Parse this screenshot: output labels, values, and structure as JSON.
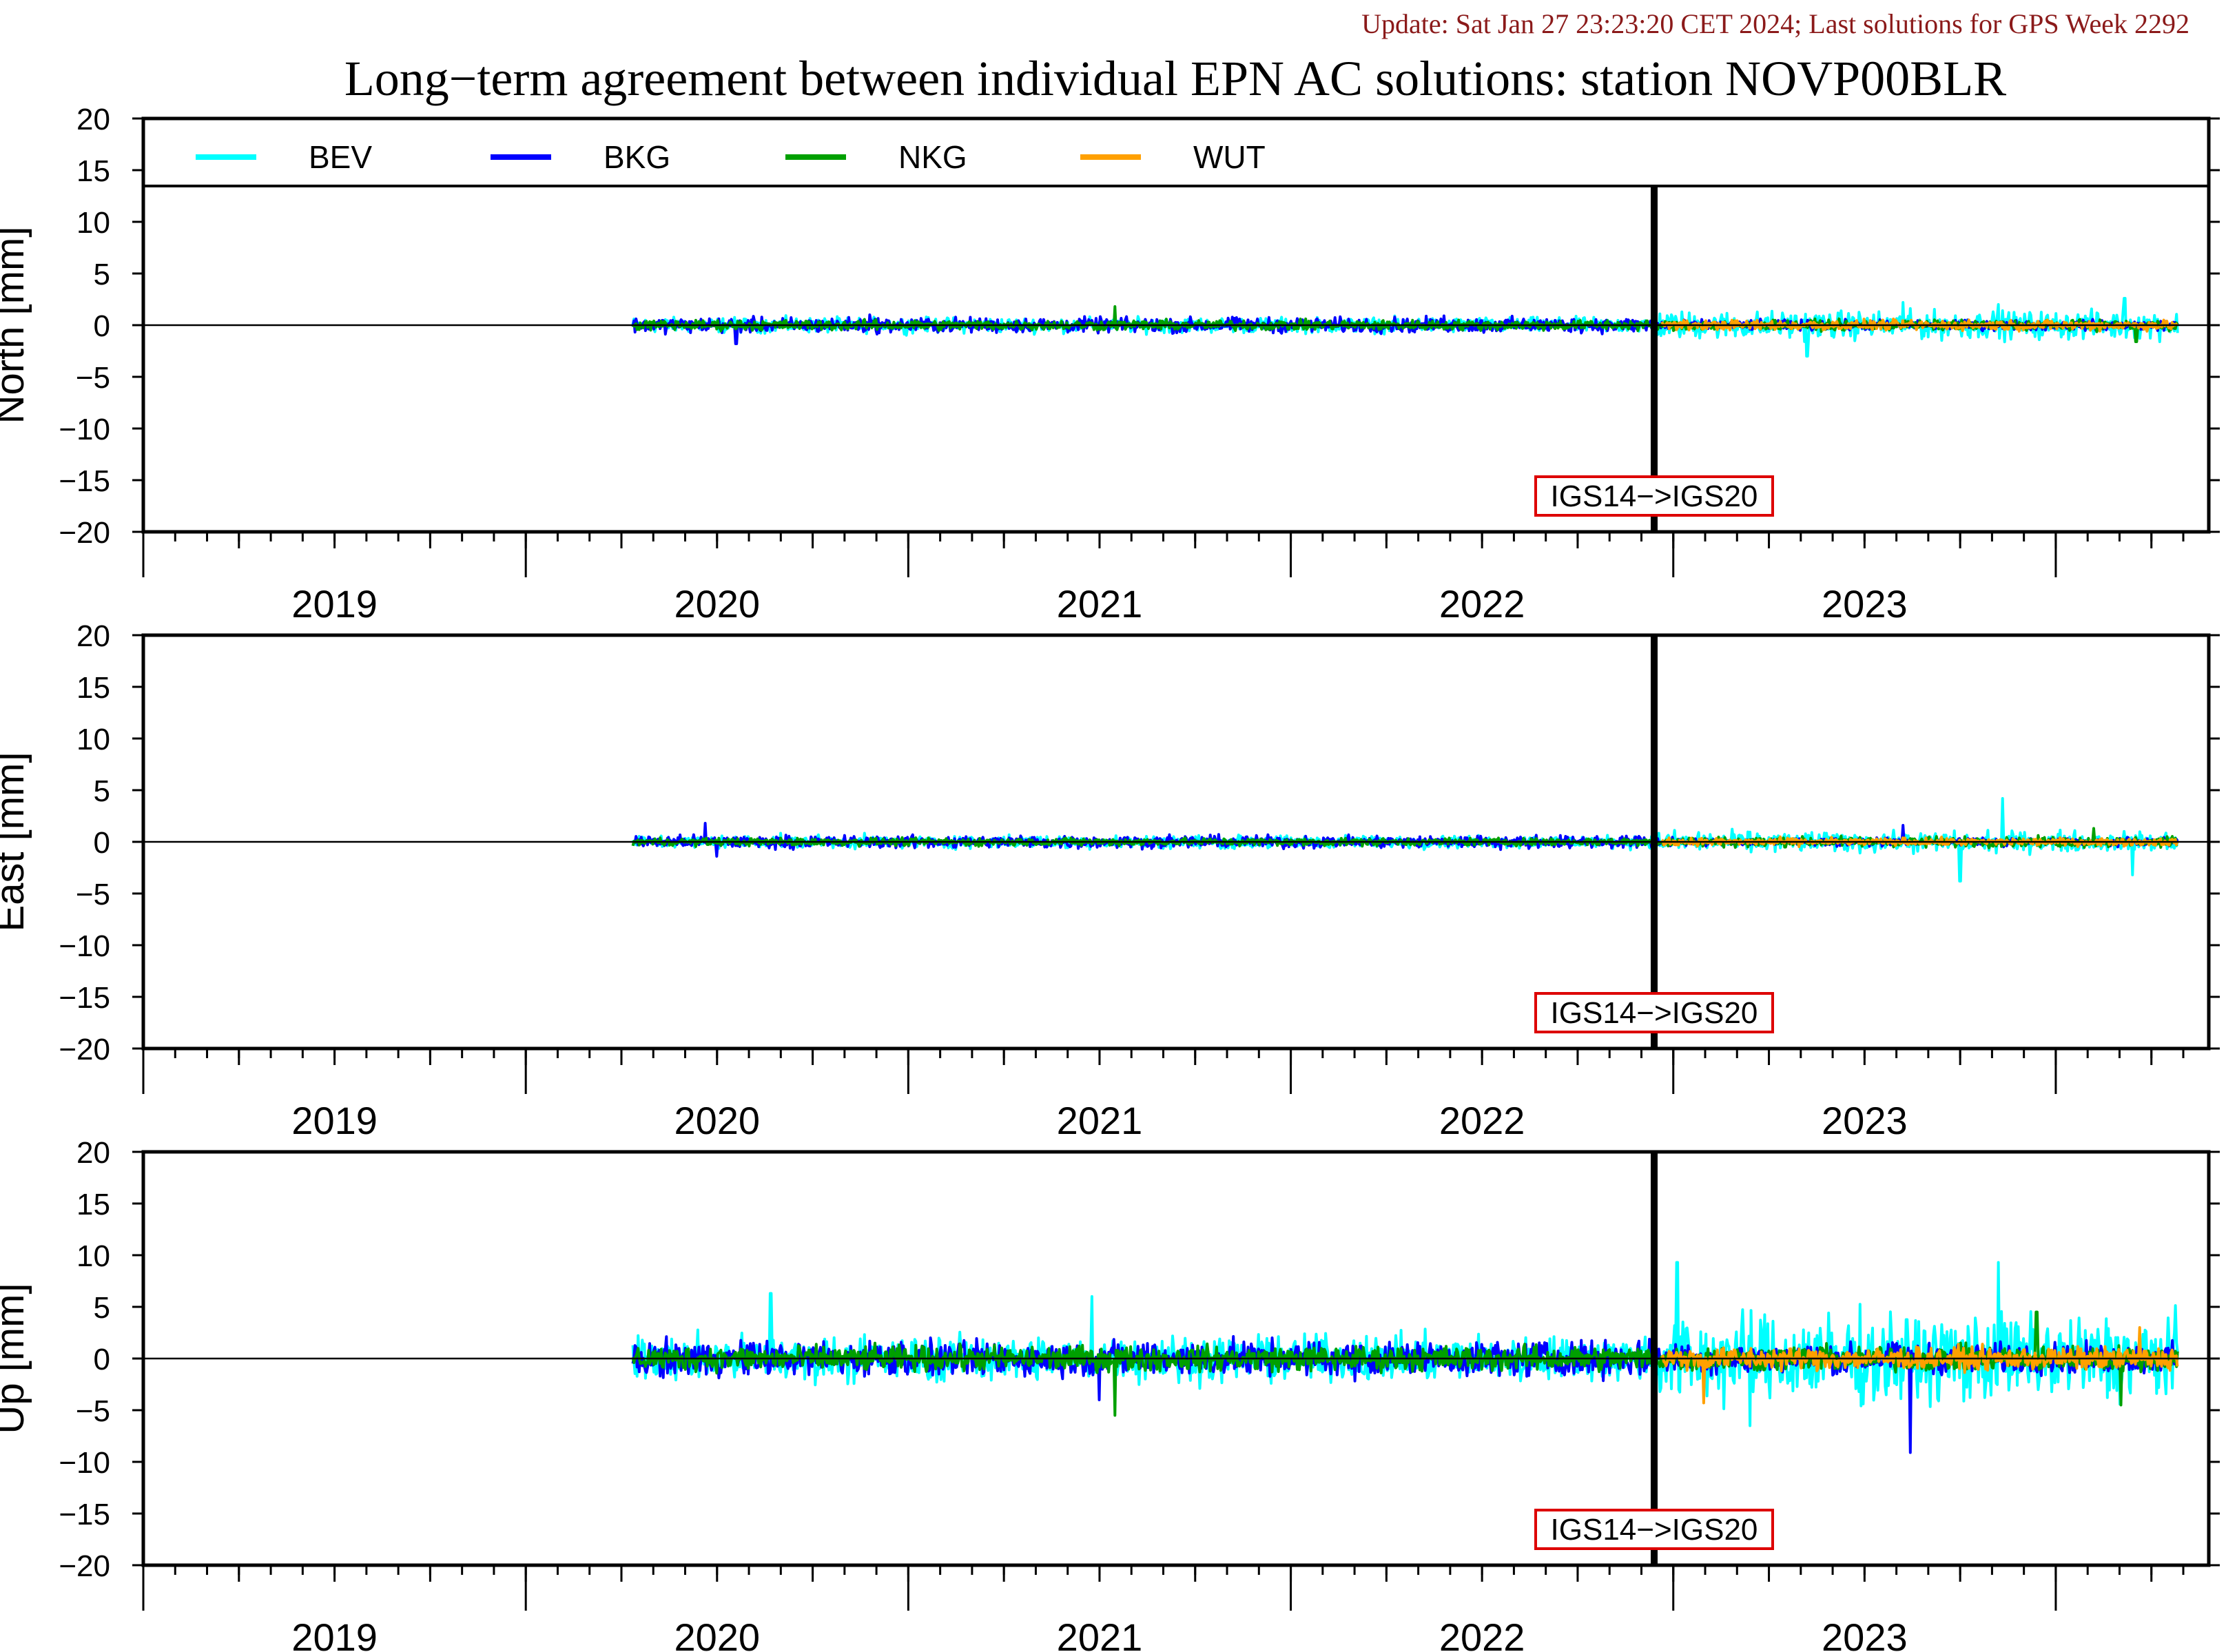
{
  "update_text": "Update: Sat Jan 27 23:23:20 CET 2024; Last solutions for GPS Week 2292",
  "colors": {
    "update_text": "#8b1a1a",
    "BEV": "#00ffff",
    "BKG": "#0000ff",
    "NKG": "#00a000",
    "WUT": "#ffa000",
    "annotation_box": "#dd0000"
  },
  "chart_data": {
    "type": "line",
    "title": "Long−term agreement between individual EPN AC solutions: station NOVP00BLR",
    "x_range": [
      2018.5,
      2023.9
    ],
    "x_tick_labels": [
      "2019",
      "2020",
      "2021",
      "2022",
      "2023"
    ],
    "y_range": [
      -20,
      20
    ],
    "y_ticks": [
      20,
      15,
      10,
      5,
      0,
      -5,
      -10,
      -15,
      -20
    ],
    "y_tick_labels": [
      "20",
      "15",
      "10",
      "5",
      "0",
      "−5",
      "−10",
      "−15",
      "−20"
    ],
    "legend": {
      "placement": "top, inside first panel",
      "entries": [
        "BEV",
        "BKG",
        "NKG",
        "WUT"
      ]
    },
    "event_marker": {
      "x": 2022.45,
      "label": "IGS14−>IGS20"
    },
    "series_spans": [
      {
        "name": "BEV",
        "start": 2019.78,
        "end": 2023.82
      },
      {
        "name": "BKG",
        "start": 2019.78,
        "end": 2023.82
      },
      {
        "name": "NKG",
        "start": 2019.78,
        "end": 2023.82
      },
      {
        "name": "WUT",
        "start": 2022.47,
        "end": 2023.82
      }
    ],
    "panels": [
      {
        "ylabel": "North [mm]",
        "series": [
          {
            "name": "BEV",
            "approx_amplitude_mm": {
              "before": 0.6,
              "after": 1.1
            },
            "peaks": [
              [
                2022.85,
                -3.0
              ],
              [
                2023.1,
                2.2
              ],
              [
                2023.35,
                2.0
              ],
              [
                2023.68,
                2.6
              ]
            ]
          },
          {
            "name": "BKG",
            "approx_amplitude_mm": {
              "before": 0.6,
              "after": 0.4
            },
            "peaks": [
              [
                2020.05,
                -1.8
              ],
              [
                2020.4,
                1.0
              ],
              [
                2021.9,
                0.9
              ]
            ]
          },
          {
            "name": "NKG",
            "approx_amplitude_mm": {
              "before": 0.4,
              "after": 0.4
            },
            "peaks": [
              [
                2021.04,
                1.8
              ],
              [
                2023.71,
                -1.6
              ]
            ]
          },
          {
            "name": "WUT",
            "approx_amplitude_mm": {
              "before": 0,
              "after": 0.4
            },
            "peaks": []
          }
        ]
      },
      {
        "ylabel": "East [mm]",
        "series": [
          {
            "name": "BEV",
            "approx_amplitude_mm": {
              "before": 0.5,
              "after": 0.8
            },
            "peaks": [
              [
                2023.36,
                4.2
              ],
              [
                2023.25,
                -3.8
              ],
              [
                2023.7,
                -3.2
              ]
            ]
          },
          {
            "name": "BKG",
            "approx_amplitude_mm": {
              "before": 0.5,
              "after": 0.3
            },
            "peaks": [
              [
                2019.97,
                1.8
              ],
              [
                2020.0,
                -1.4
              ],
              [
                2023.1,
                1.6
              ]
            ]
          },
          {
            "name": "NKG",
            "approx_amplitude_mm": {
              "before": 0.3,
              "after": 0.4
            },
            "peaks": [
              [
                2023.6,
                1.3
              ]
            ]
          },
          {
            "name": "WUT",
            "approx_amplitude_mm": {
              "before": 0,
              "after": 0.3
            },
            "peaks": []
          }
        ]
      },
      {
        "ylabel": "Up [mm]",
        "series": [
          {
            "name": "BEV",
            "approx_amplitude_mm": {
              "before": 1.8,
              "after": 3.5
            },
            "peaks": [
              [
                2020.14,
                6.3
              ],
              [
                2020.98,
                6.0
              ],
              [
                2022.51,
                9.3
              ],
              [
                2023.35,
                9.3
              ],
              [
                2022.7,
                -6.5
              ],
              [
                2023.12,
                -7.0
              ]
            ]
          },
          {
            "name": "BKG",
            "approx_amplitude_mm": {
              "before": 1.4,
              "after": 1.2
            },
            "peaks": [
              [
                2023.12,
                -9.1
              ],
              [
                2021.0,
                -4.0
              ]
            ]
          },
          {
            "name": "NKG",
            "approx_amplitude_mm": {
              "before": 1.0,
              "after": 1.0
            },
            "peaks": [
              [
                2021.04,
                -5.5
              ],
              [
                2023.45,
                4.5
              ],
              [
                2023.67,
                -4.5
              ]
            ]
          },
          {
            "name": "WUT",
            "approx_amplitude_mm": {
              "before": 0,
              "after": 0.9
            },
            "peaks": [
              [
                2022.58,
                -4.3
              ],
              [
                2023.72,
                3.0
              ]
            ]
          }
        ]
      }
    ]
  }
}
